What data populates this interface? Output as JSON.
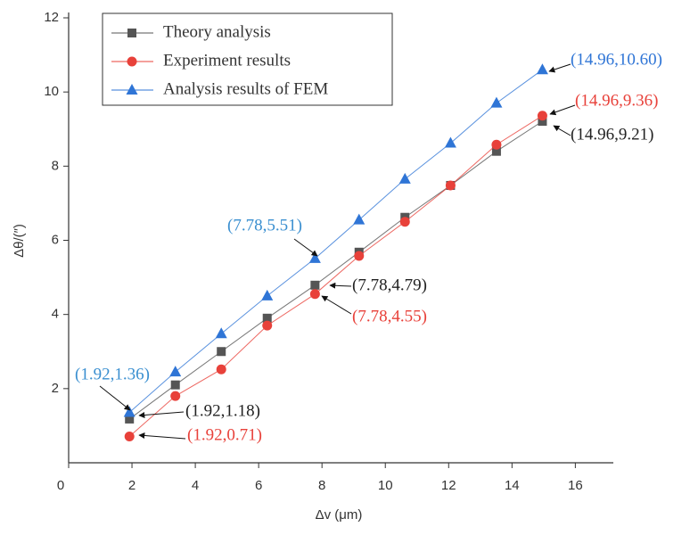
{
  "chart_data": {
    "type": "line",
    "x_label": "Δv (μm)",
    "y_label": "Δθ/(″)",
    "x": [
      1.92,
      3.37,
      4.82,
      6.27,
      7.78,
      9.17,
      10.62,
      12.06,
      13.51,
      14.96
    ],
    "series": [
      {
        "name": "Theory analysis",
        "color": "#555555",
        "marker": "square",
        "values": [
          1.18,
          2.1,
          3.0,
          3.9,
          4.79,
          5.68,
          6.62,
          7.48,
          8.4,
          9.21
        ]
      },
      {
        "name": "Experiment results",
        "color": "#e8413a",
        "marker": "circle",
        "values": [
          0.71,
          1.8,
          2.52,
          3.7,
          4.55,
          5.58,
          6.5,
          7.48,
          8.58,
          9.36
        ]
      },
      {
        "name": "Analysis results of FEM",
        "color": "#2f75d6",
        "marker": "triangle",
        "values": [
          1.36,
          2.45,
          3.48,
          4.5,
          5.51,
          6.55,
          7.65,
          8.62,
          9.7,
          10.6
        ]
      }
    ],
    "annotations": [
      {
        "text": "(14.96,10.60)",
        "color": "#2f75d6"
      },
      {
        "text": "(14.96,9.36)",
        "color": "#e8413a"
      },
      {
        "text": "(14.96,9.21)",
        "color": "#222222"
      },
      {
        "text": "(7.78,5.51)",
        "color": "#3a8fd0"
      },
      {
        "text": "(7.78,4.79)",
        "color": "#222222"
      },
      {
        "text": "(7.78,4.55)",
        "color": "#e8413a"
      },
      {
        "text": "(1.92,1.36)",
        "color": "#3a8fd0"
      },
      {
        "text": "(1.92,1.18)",
        "color": "#222222"
      },
      {
        "text": "(1.92,0.71)",
        "color": "#e8413a"
      }
    ],
    "xlim": [
      0,
      17.2
    ],
    "ylim": [
      0,
      12
    ],
    "xticks": [
      0,
      2,
      4,
      6,
      8,
      10,
      12,
      14,
      16
    ],
    "yticks": [
      2,
      4,
      6,
      8,
      10,
      12
    ],
    "grid": false,
    "legend": "upper left"
  }
}
